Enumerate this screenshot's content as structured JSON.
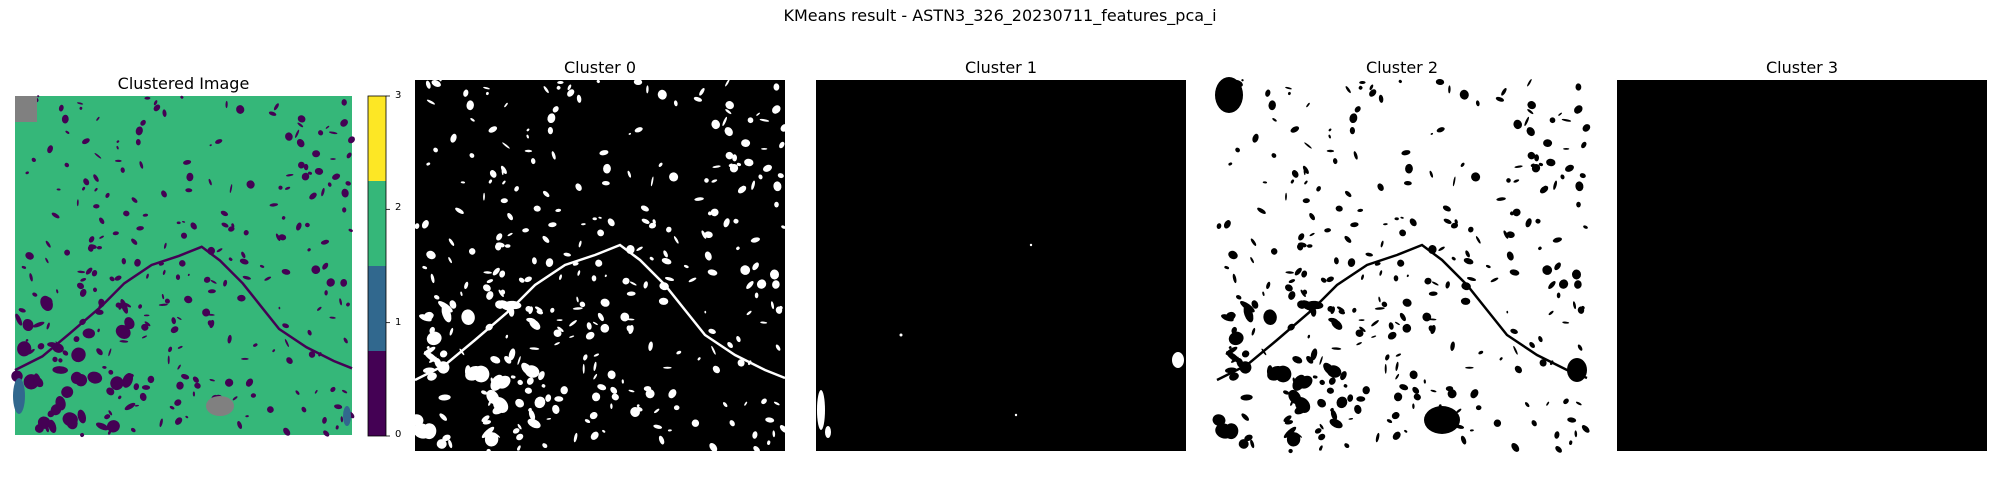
{
  "figure": {
    "suptitle": "KMeans result - ASTN3_326_20230711_features_pca_i"
  },
  "colors": {
    "cluster_0": "#440154",
    "cluster_1": "#31688e",
    "cluster_2": "#35b779",
    "cluster_3": "#fde725",
    "nodata": "#808080",
    "mask_on": "#ffffff",
    "mask_off": "#000000"
  },
  "chart_data": [
    {
      "type": "heatmap",
      "title": "Clustered Image",
      "colormap": "viridis",
      "colorbar": {
        "ticks": [
          "0",
          "1",
          "2",
          "3"
        ],
        "range": [
          0,
          3
        ]
      },
      "axes_visible": false
    },
    {
      "type": "heatmap",
      "title": "Cluster 0",
      "colormap": "binary",
      "axes_visible": false
    },
    {
      "type": "heatmap",
      "title": "Cluster 1",
      "colormap": "binary",
      "axes_visible": false
    },
    {
      "type": "heatmap",
      "title": "Cluster 2",
      "colormap": "binary",
      "axes_visible": false
    },
    {
      "type": "heatmap",
      "title": "Cluster 3",
      "colormap": "binary",
      "axes_visible": false
    }
  ]
}
